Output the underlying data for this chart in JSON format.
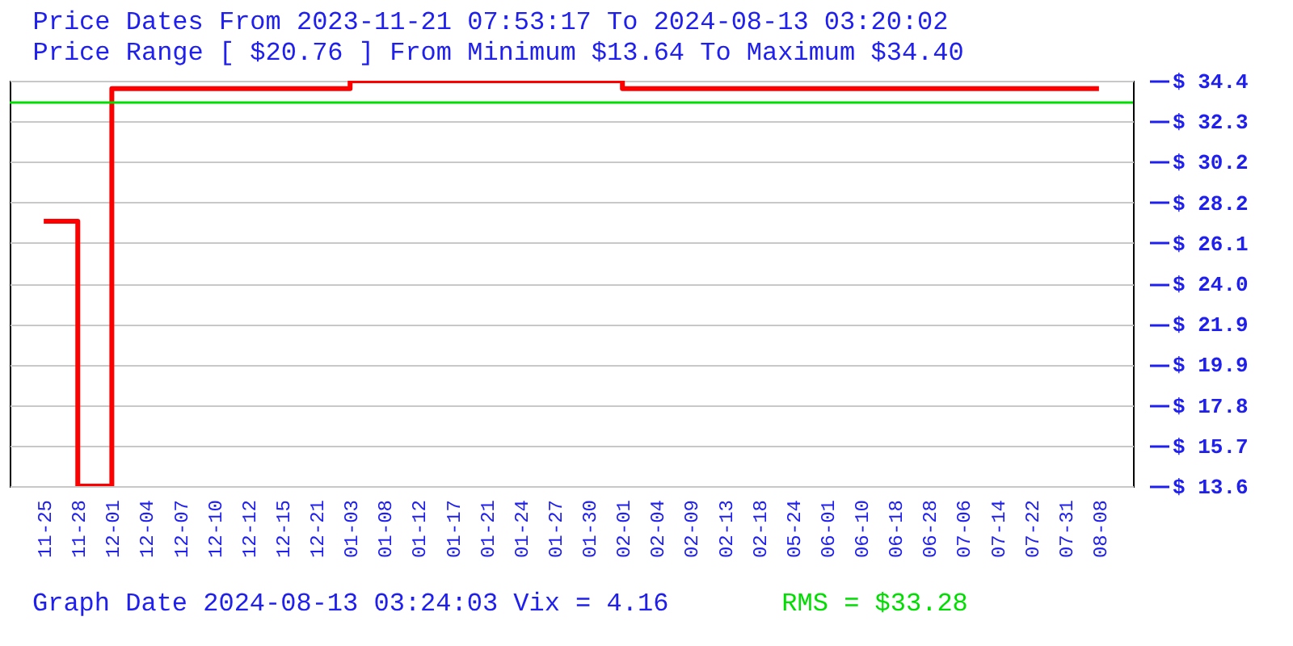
{
  "chart_data": {
    "type": "step",
    "title": "Price Dates From 2023-11-21 07:53:17 To 2024-08-13 03:20:02",
    "subtitle": "Price Range [ $20.76 ] From Minimum $13.64 To Maximum $34.40",
    "categories": [
      "11-25",
      "11-28",
      "12-01",
      "12-04",
      "12-07",
      "12-10",
      "12-12",
      "12-15",
      "12-21",
      "01-03",
      "01-08",
      "01-12",
      "01-17",
      "01-21",
      "01-24",
      "01-27",
      "01-30",
      "02-01",
      "02-04",
      "02-09",
      "02-13",
      "02-18",
      "05-24",
      "06-01",
      "06-10",
      "06-18",
      "06-28",
      "07-06",
      "07-14",
      "07-22",
      "07-31",
      "08-08"
    ],
    "series": [
      {
        "color": "#ff0000",
        "values": [
          27.2,
          13.64,
          34.0,
          34.0,
          34.0,
          34.0,
          34.0,
          34.0,
          34.0,
          34.4,
          34.4,
          34.4,
          34.4,
          34.4,
          34.4,
          34.4,
          34.4,
          34.0,
          34.0,
          34.0,
          34.0,
          34.0,
          34.0,
          34.0,
          34.0,
          34.0,
          34.0,
          34.0,
          34.0,
          34.0,
          34.0,
          34.0
        ]
      }
    ],
    "ylim": [
      13.64,
      34.4
    ],
    "yticks": [
      {
        "value": 13.64,
        "label": "$ 13.6"
      },
      {
        "value": 15.716,
        "label": "$ 15.7"
      },
      {
        "value": 17.792,
        "label": "$ 17.8"
      },
      {
        "value": 19.868,
        "label": "$ 19.9"
      },
      {
        "value": 21.944,
        "label": "$ 21.9"
      },
      {
        "value": 24.02,
        "label": "$ 24.0"
      },
      {
        "value": 26.096,
        "label": "$ 26.1"
      },
      {
        "value": 28.172,
        "label": "$ 28.2"
      },
      {
        "value": 30.248,
        "label": "$ 30.2"
      },
      {
        "value": 32.324,
        "label": "$ 32.3"
      },
      {
        "value": 34.4,
        "label": "$ 34.4"
      }
    ],
    "grid": "y",
    "ref_lines": [
      {
        "axis": "y",
        "value": 33.28,
        "label": "RMS = $33.28",
        "color": "#00dd00"
      }
    ],
    "annotations": [
      "Graph Date 2024-08-13 03:24:03 Vix = 4.16"
    ]
  }
}
